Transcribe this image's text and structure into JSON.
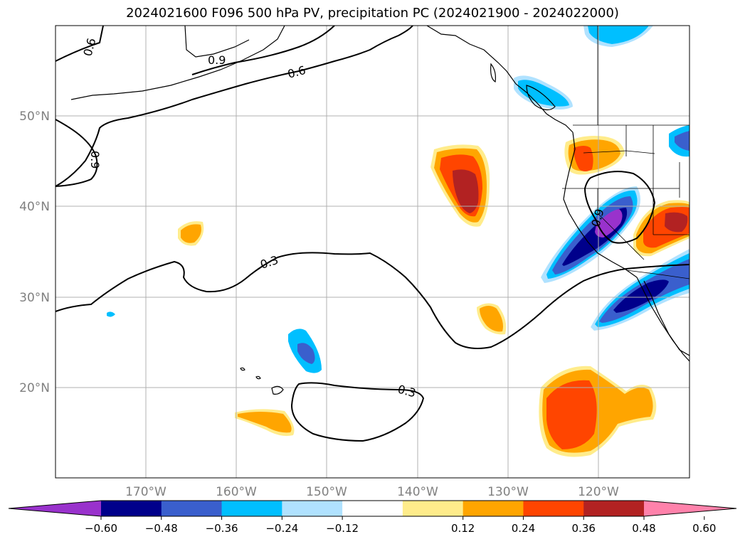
{
  "title": "2024021600 F096 500 hPa PV, precipitation PC (2024021900 - 2024022000)",
  "lat_labels": [
    "50°N",
    "40°N",
    "30°N",
    "20°N"
  ],
  "lon_labels": [
    "170°W",
    "160°W",
    "150°W",
    "140°W",
    "130°W",
    "120°W"
  ],
  "contour_labels": [
    "0.6",
    "0.9",
    "0.6",
    "0.9",
    "0.3",
    "0.3",
    "0.9"
  ],
  "colorbar": {
    "ticks": [
      "−0.60",
      "−0.48",
      "−0.36",
      "−0.24",
      "−0.12",
      "0.12",
      "0.24",
      "0.36",
      "0.48",
      "0.60"
    ],
    "colors": [
      "#9932cc",
      "#00008b",
      "#3a5fcd",
      "#00bfff",
      "#b0e2ff",
      "#ffffff",
      "#ffec8b",
      "#ffa500",
      "#ff4500",
      "#b22222",
      "#ff82ab"
    ]
  },
  "colors": {
    "gridline": "#b0b0b0",
    "tick_label": "#808080",
    "contour": "#000000"
  }
}
